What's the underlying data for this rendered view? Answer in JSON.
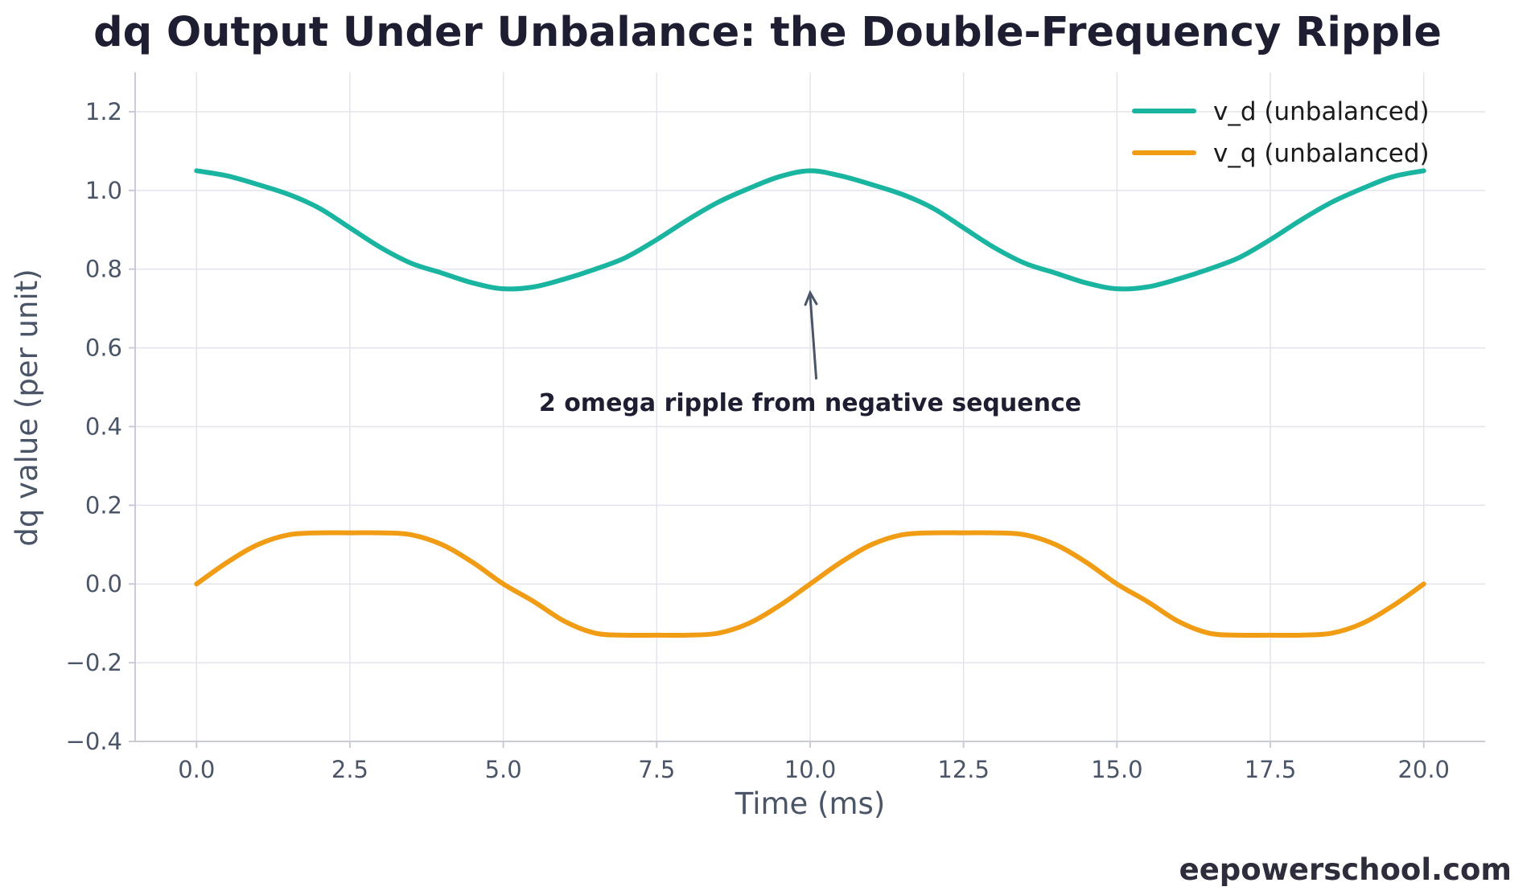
{
  "chart_data": {
    "type": "line",
    "title": "dq Output Under Unbalance: the Double-Frequency Ripple",
    "xlabel": "Time (ms)",
    "ylabel": "dq value (per unit)",
    "xlim": [
      -1.0,
      21.0
    ],
    "ylim": [
      -0.4,
      1.3
    ],
    "xticks": [
      0.0,
      2.5,
      5.0,
      7.5,
      10.0,
      12.5,
      15.0,
      17.5,
      20.0
    ],
    "xtick_labels": [
      "0.0",
      "2.5",
      "5.0",
      "7.5",
      "10.0",
      "12.5",
      "15.0",
      "17.5",
      "20.0"
    ],
    "yticks": [
      -0.4,
      -0.2,
      0.0,
      0.2,
      0.4,
      0.6,
      0.8,
      1.0,
      1.2
    ],
    "ytick_labels": [
      "−0.4",
      "−0.2",
      "0.0",
      "0.2",
      "0.4",
      "0.6",
      "0.8",
      "1.0",
      "1.2"
    ],
    "grid": true,
    "legend_position": "top-right",
    "series": [
      {
        "name": "v_d (unbalanced)",
        "color": "#1ab5a0",
        "x": [
          0,
          0.5,
          1,
          1.5,
          2,
          2.5,
          3,
          3.5,
          4,
          4.5,
          5,
          5.5,
          6,
          6.5,
          7,
          7.5,
          8,
          8.5,
          9,
          9.5,
          10,
          10.5,
          11,
          11.5,
          12,
          12.5,
          13,
          13.5,
          14,
          14.5,
          15,
          15.5,
          16,
          16.5,
          17,
          17.5,
          18,
          18.5,
          19,
          19.5,
          20
        ],
        "y": [
          1.05,
          1.037,
          1.015,
          0.99,
          0.955,
          0.905,
          0.855,
          0.815,
          0.79,
          0.765,
          0.75,
          0.755,
          0.775,
          0.8,
          0.83,
          0.875,
          0.925,
          0.97,
          1.005,
          1.035,
          1.05,
          1.037,
          1.015,
          0.99,
          0.955,
          0.905,
          0.855,
          0.815,
          0.79,
          0.765,
          0.75,
          0.755,
          0.775,
          0.8,
          0.83,
          0.875,
          0.925,
          0.97,
          1.005,
          1.035,
          1.05
        ]
      },
      {
        "name": "v_q (unbalanced)",
        "color": "#f09c14",
        "x": [
          0,
          0.5,
          1,
          1.5,
          2,
          2.5,
          3,
          3.5,
          4,
          4.5,
          5,
          5.5,
          6,
          6.5,
          7,
          7.5,
          8,
          8.5,
          9,
          9.5,
          10,
          10.5,
          11,
          11.5,
          12,
          12.5,
          13,
          13.5,
          14,
          14.5,
          15,
          15.5,
          16,
          16.5,
          17,
          17.5,
          18,
          18.5,
          19,
          19.5,
          20
        ],
        "y": [
          0.0,
          0.055,
          0.1,
          0.125,
          0.13,
          0.13,
          0.13,
          0.125,
          0.1,
          0.055,
          0.0,
          -0.045,
          -0.095,
          -0.125,
          -0.13,
          -0.13,
          -0.13,
          -0.125,
          -0.1,
          -0.055,
          0.0,
          0.055,
          0.1,
          0.125,
          0.13,
          0.13,
          0.13,
          0.125,
          0.1,
          0.055,
          0.0,
          -0.045,
          -0.095,
          -0.125,
          -0.13,
          -0.13,
          -0.13,
          -0.125,
          -0.1,
          -0.055,
          0.0
        ]
      }
    ],
    "annotation": {
      "text": "2 omega ripple from negative sequence",
      "text_x": 10.0,
      "text_y": 0.46,
      "arrow_from": [
        10.1,
        0.52
      ],
      "arrow_to": [
        10.0,
        0.74
      ]
    }
  },
  "watermark": "eepowerschool.com",
  "colors": {
    "grid": "#e3e3ec",
    "axis": "#c9cbd6",
    "text": "#4a5568",
    "title": "#1e1e32",
    "annotation_arrow": "#4a5568"
  }
}
